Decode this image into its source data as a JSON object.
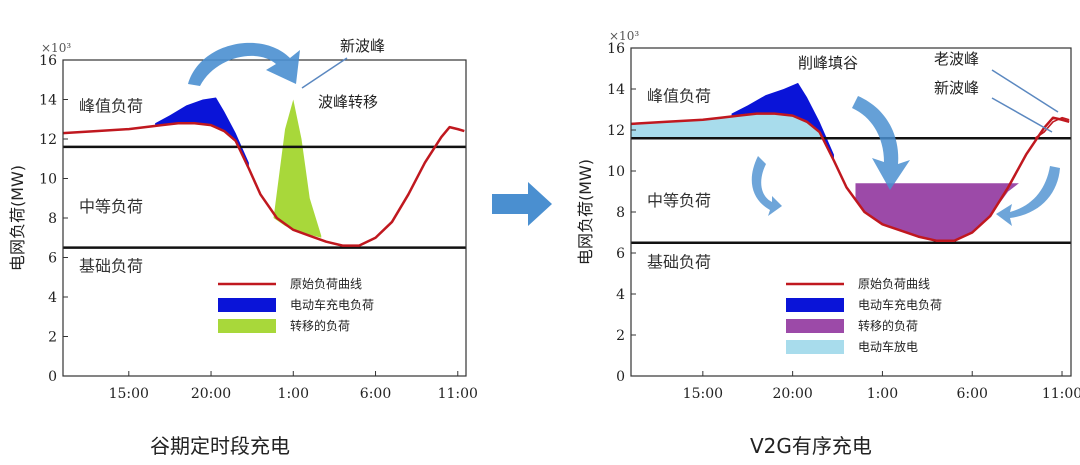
{
  "captions": {
    "left": "谷期定时段充电",
    "right": "V2G有序充电"
  },
  "colors": {
    "original": "#c0181f",
    "ev_charge": "#0a14d8",
    "shifted": "#a8d83a",
    "moved": "#9c4aa8",
    "discharge": "#a8dcec",
    "arrow": "#4a8fd0",
    "threshold": "#111111"
  },
  "chart_data": [
    {
      "type": "area",
      "title": "",
      "caption": "谷期定时段充电",
      "ylabel": "电网负荷(MW)",
      "y_multiplier": "×10³",
      "ylim": [
        0,
        16
      ],
      "yticks": [
        "0",
        "2",
        "4",
        "6",
        "8",
        "10",
        "12",
        "14",
        "16"
      ],
      "xticks": [
        {
          "label": "15:00",
          "x": 15
        },
        {
          "label": "20:00",
          "x": 20
        },
        {
          "label": "1:00",
          "x": 25
        },
        {
          "label": "6:00",
          "x": 30
        },
        {
          "label": "11:00",
          "x": 35
        }
      ],
      "xlim": [
        11,
        35.5
      ],
      "threshold_lines": [
        11.6,
        6.5
      ],
      "zone_labels": [
        {
          "text": "峰值负荷",
          "y": 13.4
        },
        {
          "text": "中等负荷",
          "y": 8.3
        },
        {
          "text": "基础负荷",
          "y": 5.3
        }
      ],
      "annotations": [
        "新波峰",
        "波峰转移"
      ],
      "legend": {
        "placement": "bottom-center",
        "entries": [
          "原始负荷曲线",
          "电动车充电负荷",
          "转移的负荷"
        ]
      },
      "series": [
        {
          "name": "原始负荷曲线",
          "kind": "line",
          "x": [
            11,
            13,
            15,
            16,
            17,
            18,
            19,
            20,
            20.8,
            21.5,
            22.3,
            23,
            24,
            25,
            26,
            27,
            28,
            29,
            30,
            31,
            32,
            33,
            34,
            34.5,
            35,
            35.4
          ],
          "y": [
            12.3,
            12.4,
            12.5,
            12.6,
            12.7,
            12.8,
            12.8,
            12.7,
            12.4,
            11.9,
            10.5,
            9.2,
            8.0,
            7.4,
            7.1,
            6.8,
            6.6,
            6.6,
            7.0,
            7.8,
            9.2,
            10.8,
            12.1,
            12.6,
            12.5,
            12.4
          ]
        },
        {
          "name": "电动车充电负荷",
          "kind": "band",
          "x": [
            16.6,
            17.5,
            18.5,
            19.5,
            20.3,
            20.8,
            21.5,
            22.3
          ],
          "upper": [
            12.8,
            13.2,
            13.7,
            14.0,
            14.1,
            13.4,
            12.3,
            10.8
          ],
          "lower": [
            12.7,
            12.8,
            12.8,
            12.8,
            12.6,
            12.4,
            11.9,
            10.5
          ]
        },
        {
          "name": "转移的负荷",
          "kind": "peak",
          "x": [
            23.8,
            24.5,
            25.0,
            25.5,
            26.0,
            26.7
          ],
          "upper": [
            8.0,
            12.5,
            14.0,
            12.0,
            9.0,
            7.1
          ],
          "lower": [
            8.0,
            7.6,
            7.4,
            7.3,
            7.15,
            7.0
          ]
        }
      ]
    },
    {
      "type": "area",
      "title": "",
      "caption": "V2G有序充电",
      "ylabel": "电网负荷(MW)",
      "y_multiplier": "×10³",
      "ylim": [
        0,
        16
      ],
      "yticks": [
        "0",
        "2",
        "4",
        "6",
        "8",
        "10",
        "12",
        "14",
        "16"
      ],
      "xticks": [
        {
          "label": "15:00",
          "x": 15
        },
        {
          "label": "20:00",
          "x": 20
        },
        {
          "label": "1:00",
          "x": 25
        },
        {
          "label": "6:00",
          "x": 30
        },
        {
          "label": "11:00",
          "x": 35
        }
      ],
      "xlim": [
        11,
        35.5
      ],
      "threshold_lines": [
        11.6,
        6.5
      ],
      "zone_labels": [
        {
          "text": "峰值负荷",
          "y": 13.4
        },
        {
          "text": "中等负荷",
          "y": 8.3
        },
        {
          "text": "基础负荷",
          "y": 5.3
        }
      ],
      "annotations": [
        "削峰填谷",
        "老波峰",
        "新波峰"
      ],
      "legend": {
        "placement": "bottom-center",
        "entries": [
          "原始负荷曲线",
          "电动车充电负荷",
          "转移的负荷",
          "电动车放电"
        ]
      },
      "series": [
        {
          "name": "原始负荷曲线",
          "kind": "line",
          "x": [
            11,
            13,
            15,
            16,
            17,
            18,
            19,
            20,
            20.8,
            21.5,
            22.3,
            23,
            24,
            25,
            26,
            27,
            28,
            29,
            30,
            31,
            32,
            33,
            34,
            34.5,
            35,
            35.4
          ],
          "y": [
            12.3,
            12.4,
            12.5,
            12.6,
            12.7,
            12.8,
            12.8,
            12.7,
            12.4,
            11.9,
            10.5,
            9.2,
            8.0,
            7.4,
            7.1,
            6.8,
            6.6,
            6.6,
            7.0,
            7.8,
            9.2,
            10.8,
            12.1,
            12.6,
            12.5,
            12.4
          ]
        },
        {
          "name": "电动车放电",
          "kind": "band",
          "x": [
            11,
            13,
            15,
            16,
            17,
            18,
            19,
            20,
            20.8,
            21.5,
            22.0
          ],
          "upper": [
            12.3,
            12.4,
            12.5,
            12.6,
            12.7,
            12.8,
            12.8,
            12.7,
            12.4,
            11.9,
            11.6
          ],
          "lower": [
            11.6,
            11.6,
            11.6,
            11.6,
            11.6,
            11.6,
            11.6,
            11.6,
            11.6,
            11.6,
            11.6
          ]
        },
        {
          "name": "电动车充电负荷",
          "kind": "band",
          "x": [
            16.6,
            17.5,
            18.5,
            19.5,
            20.3,
            20.8,
            21.5,
            22.3
          ],
          "upper": [
            12.8,
            13.2,
            13.7,
            14.0,
            14.3,
            13.6,
            12.4,
            10.8
          ],
          "lower": [
            12.7,
            12.8,
            12.8,
            12.8,
            12.6,
            12.4,
            11.9,
            10.5
          ]
        },
        {
          "name": "转移的负荷",
          "kind": "band",
          "x": [
            23.5,
            24,
            25,
            26,
            27,
            28,
            29,
            30,
            31,
            32,
            32.6
          ],
          "upper": [
            9.4,
            9.4,
            9.4,
            9.4,
            9.4,
            9.4,
            9.4,
            9.4,
            9.4,
            9.4,
            9.4
          ],
          "lower": [
            8.6,
            8.0,
            7.4,
            7.1,
            6.8,
            6.6,
            6.6,
            7.0,
            7.8,
            9.0,
            9.4
          ]
        },
        {
          "name": "新波峰",
          "kind": "line-thin",
          "x": [
            33.5,
            34,
            34.5,
            35,
            35.4
          ],
          "y": [
            11.6,
            11.9,
            12.4,
            12.6,
            12.5
          ]
        }
      ]
    }
  ]
}
